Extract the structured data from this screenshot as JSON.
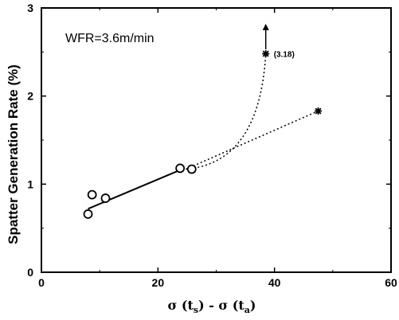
{
  "chart_data": {
    "type": "scatter",
    "xlabel": {
      "prefix": "σ (t",
      "sub1": "s",
      "mid": ") - σ (t",
      "sub2": "a",
      "suffix": ")"
    },
    "ylabel": "Spatter Generation Rate (%)",
    "xlim": [
      0,
      60
    ],
    "ylim": [
      0,
      3
    ],
    "x_ticks": [
      0,
      20,
      40,
      60
    ],
    "y_ticks": [
      0,
      1,
      2,
      3
    ],
    "x_tick_labels": [
      "0",
      "20",
      "40",
      "60"
    ],
    "y_tick_labels": [
      "0",
      "1",
      "2",
      "3"
    ],
    "grid": false,
    "annotation": "WFR=3.6m/min",
    "measured": {
      "marker": "open-circle",
      "points": [
        {
          "x": 8.0,
          "y": 0.66
        },
        {
          "x": 8.7,
          "y": 0.88
        },
        {
          "x": 11.0,
          "y": 0.84
        },
        {
          "x": 23.8,
          "y": 1.18
        },
        {
          "x": 25.8,
          "y": 1.17
        }
      ]
    },
    "fit_line": {
      "style": "solid",
      "points": [
        {
          "x": 8.0,
          "y": 0.72
        },
        {
          "x": 24.5,
          "y": 1.18
        }
      ]
    },
    "extrapolated": {
      "marker": "asterisk",
      "points": [
        {
          "x": 38.5,
          "y": 2.48,
          "label": "(3.18)"
        },
        {
          "x": 47.5,
          "y": 1.83
        }
      ]
    },
    "dotted_curves": [
      {
        "style": "dotted",
        "shape": "curve",
        "from": {
          "x": 24.8,
          "y": 1.17
        },
        "to": {
          "x": 38.5,
          "y": 2.48
        }
      },
      {
        "style": "dotted",
        "shape": "line",
        "from": {
          "x": 24.8,
          "y": 1.17
        },
        "to": {
          "x": 47.5,
          "y": 1.83
        }
      }
    ],
    "arrow": {
      "from": {
        "x": 38.5,
        "y": 2.53
      },
      "to": {
        "x": 38.5,
        "y": 2.82
      }
    }
  }
}
